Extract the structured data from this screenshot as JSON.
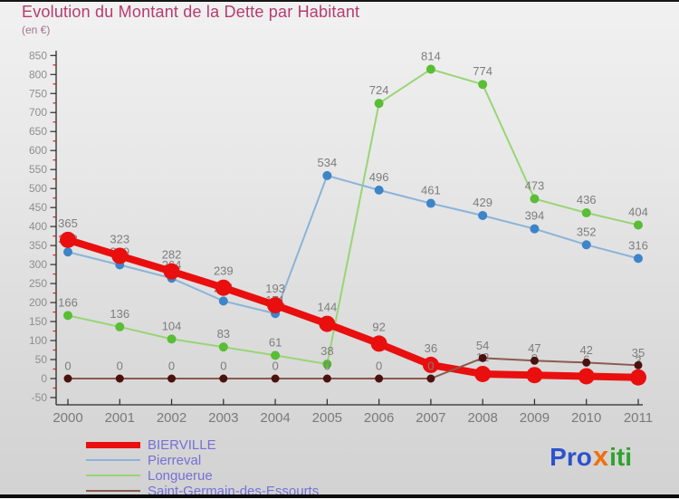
{
  "header": {
    "title": "Evolution du Montant de la Dette par Habitant",
    "subtitle": "(en €)"
  },
  "logo": {
    "part1": "Pro",
    "part2": "x",
    "part3": "iti"
  },
  "colors": {
    "title": "#b63b6e",
    "subtitle": "#a3758a",
    "axis": "#2a2a2a",
    "minor_tick": "#cc2020",
    "value_label": "#7d7d7d",
    "y_tick_label": "#8e8e8e",
    "x_tick_label": "#7a7a7a",
    "legend_text": "#7570d6",
    "background_top": "#f1f1f1",
    "background_bottom": "#d2d2d2"
  },
  "chart_data": {
    "type": "line",
    "title": "Evolution du Montant de la Dette par Habitant",
    "ylabel": "(en €)",
    "x": [
      2000,
      2001,
      2002,
      2003,
      2004,
      2005,
      2006,
      2007,
      2008,
      2009,
      2010,
      2011
    ],
    "series": [
      {
        "name": "BIERVILLE",
        "values": [
          365,
          323,
          282,
          239,
          193,
          144,
          92,
          36,
          12,
          9,
          6,
          3
        ],
        "line_color": "#e90f0f",
        "dot_color": "#e90f0f",
        "width": 8,
        "dot_r": 9,
        "z": 3
      },
      {
        "name": "Pierreval",
        "values": [
          333,
          299,
          264,
          204,
          171,
          534,
          496,
          461,
          429,
          394,
          352,
          316
        ],
        "line_color": "#8ab4d8",
        "dot_color": "#3d85c8",
        "width": 2,
        "dot_r": 5,
        "z": 2
      },
      {
        "name": "Longuerue",
        "values": [
          166,
          136,
          104,
          83,
          61,
          38,
          724,
          814,
          774,
          473,
          436,
          404
        ],
        "line_color": "#98d575",
        "dot_color": "#59bd36",
        "width": 2,
        "dot_r": 5,
        "z": 1
      },
      {
        "name": "Saint-Germain-des-Essourts",
        "values": [
          0,
          0,
          0,
          0,
          0,
          0,
          0,
          0,
          54,
          47,
          42,
          35
        ],
        "line_color": "#8b5a50",
        "dot_color": "#4a120f",
        "width": 2,
        "dot_r": 4.5,
        "z": 4
      }
    ],
    "ylim": [
      -50,
      850
    ],
    "y_major_step": 50,
    "y_minor_step": 25,
    "grid": false,
    "data_labels": true,
    "legend_position": "bottom-left"
  }
}
